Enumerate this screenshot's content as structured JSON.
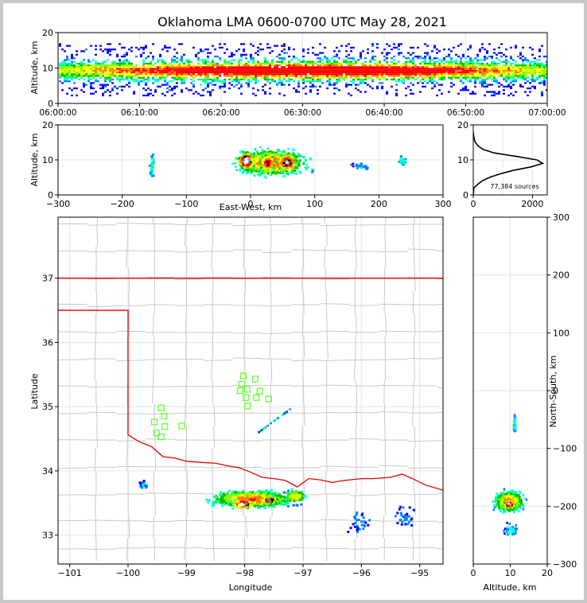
{
  "chart_data": [
    {
      "type": "heatmap",
      "panel": "time-height",
      "title": "Oklahoma LMA 0600-0700 UTC May 28, 2021",
      "ylabel": "Altitude, km",
      "ylim": [
        0,
        20
      ],
      "yticks": [
        "0",
        "10",
        "20"
      ],
      "xticks": [
        "06:00:00",
        "06:10:00",
        "06:20:00",
        "06:30:00",
        "06:40:00",
        "06:50:00",
        "07:00:00"
      ],
      "description_band": "continuous sources between ~3 and ~17 km, densest 7-12 km"
    },
    {
      "type": "heatmap",
      "panel": "east-west-height",
      "xlabel": "East-West, km",
      "ylabel": "Altitude, km",
      "xlim": [
        -300,
        300
      ],
      "ylim": [
        0,
        20
      ],
      "xticks": [
        "−300",
        "−200",
        "−100",
        "0",
        "100",
        "200",
        "300"
      ],
      "yticks": [
        "0",
        "10",
        "20"
      ]
    },
    {
      "type": "line",
      "panel": "altitude-histogram",
      "xlim": [
        0,
        2500
      ],
      "ylim": [
        0,
        20
      ],
      "xticks": [
        "0",
        "2000"
      ],
      "yticks": [
        "0",
        "10",
        "20"
      ],
      "annotation": "77,384 sources",
      "profile": {
        "altitude_km": [
          0,
          2,
          3,
          4,
          5,
          6,
          7,
          8,
          9,
          10,
          11,
          12,
          13,
          14,
          15,
          16,
          17,
          18
        ],
        "count": [
          0,
          20,
          150,
          300,
          550,
          900,
          1350,
          1950,
          2350,
          2150,
          1450,
          700,
          330,
          160,
          70,
          30,
          10,
          0
        ]
      }
    },
    {
      "type": "heatmap",
      "panel": "plan-view-map",
      "xlabel": "Longitude",
      "ylabel": "Latitude",
      "xlim": [
        -101.2,
        -94.6
      ],
      "ylim": [
        32.55,
        37.95
      ],
      "xticks": [
        "−101",
        "−100",
        "−99",
        "−98",
        "−97",
        "−96",
        "−95"
      ],
      "yticks": [
        "33",
        "34",
        "35",
        "36",
        "37"
      ],
      "stations": [
        [
          -98.02,
          35.48
        ],
        [
          -97.82,
          35.43
        ],
        [
          -98.05,
          35.35
        ],
        [
          -98.08,
          35.25
        ],
        [
          -97.96,
          35.27
        ],
        [
          -97.74,
          35.24
        ],
        [
          -97.8,
          35.14
        ],
        [
          -97.59,
          35.12
        ],
        [
          -97.98,
          35.14
        ],
        [
          -97.95,
          35.01
        ],
        [
          -99.43,
          34.98
        ],
        [
          -99.38,
          34.85
        ],
        [
          -99.55,
          34.76
        ],
        [
          -99.37,
          34.69
        ],
        [
          -99.08,
          34.7
        ],
        [
          -99.51,
          34.59
        ],
        [
          -99.43,
          34.53
        ]
      ]
    },
    {
      "type": "heatmap",
      "panel": "north-south-height",
      "xlabel": "Altitude, km",
      "ylabel": "North-South, km",
      "xlim": [
        0,
        20
      ],
      "ylim": [
        -300,
        300
      ],
      "xticks": [
        "0",
        "10",
        "20"
      ],
      "yticks": [
        "−300",
        "−200",
        "−100",
        "0",
        "100",
        "200",
        "300"
      ]
    }
  ]
}
